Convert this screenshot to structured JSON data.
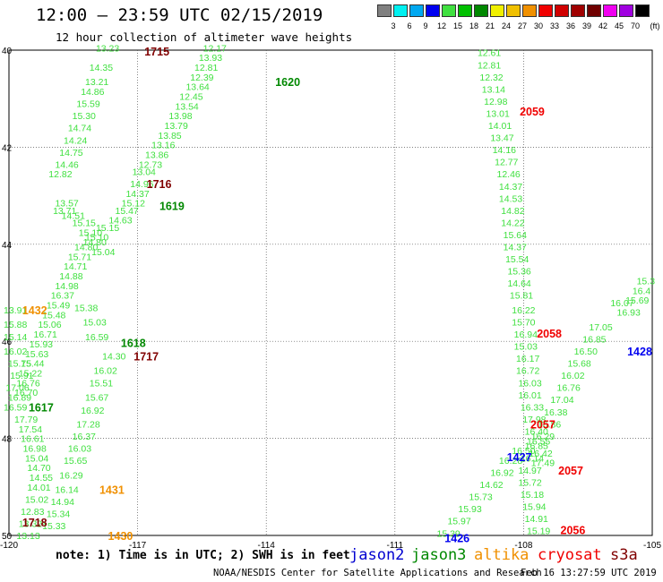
{
  "header": {
    "title": "12:00 – 23:59 UTC 02/15/2019",
    "subtitle": "12 hour collection of altimeter wave heights"
  },
  "colorbar": {
    "unit": "(ft)",
    "colors": [
      "#808080",
      "#00f0f0",
      "#00a8f0",
      "#0000f0",
      "#40e040",
      "#00c000",
      "#008800",
      "#f0f000",
      "#f0c000",
      "#f09000",
      "#f00000",
      "#d00000",
      "#a00000",
      "#700000",
      "#f000f0",
      "#a000e0",
      "#000000"
    ],
    "labels": [
      "3",
      "6",
      "9",
      "12",
      "15",
      "18",
      "21",
      "24",
      "27",
      "30",
      "33",
      "36",
      "39",
      "42",
      "45",
      "70"
    ]
  },
  "map": {
    "lon_ticks": [
      "-120",
      "-117",
      "-114",
      "-111",
      "-108",
      "-105"
    ],
    "lat_ticks": [
      "40",
      "42",
      "44",
      "46",
      "48",
      "50"
    ]
  },
  "passes": [
    {
      "label": "1715",
      "color": "#800000",
      "lon": -116.55,
      "lat": 40.02
    },
    {
      "label": "1620",
      "color": "#008800",
      "lon": -113.5,
      "lat": 40.65
    },
    {
      "label": "1716",
      "color": "#800000",
      "lon": -116.5,
      "lat": 42.75
    },
    {
      "label": "1619",
      "color": "#008800",
      "lon": -116.2,
      "lat": 43.2
    },
    {
      "label": "1432",
      "color": "#f09000",
      "lon": -119.4,
      "lat": 45.35
    },
    {
      "label": "1618",
      "color": "#008800",
      "lon": -117.1,
      "lat": 46.02
    },
    {
      "label": "1717",
      "color": "#800000",
      "lon": -116.8,
      "lat": 46.3
    },
    {
      "label": "1617",
      "color": "#008800",
      "lon": -119.25,
      "lat": 47.35
    },
    {
      "label": "1431",
      "color": "#f09000",
      "lon": -117.6,
      "lat": 49.05
    },
    {
      "label": "1718",
      "color": "#800000",
      "lon": -119.4,
      "lat": 49.72
    },
    {
      "label": "1430",
      "color": "#f09000",
      "lon": -117.4,
      "lat": 50.0
    },
    {
      "label": "2059",
      "color": "#f00000",
      "lon": -107.8,
      "lat": 41.25
    },
    {
      "label": "2058",
      "color": "#f00000",
      "lon": -107.4,
      "lat": 45.83
    },
    {
      "label": "1428",
      "color": "#0000f0",
      "lon": -105.2,
      "lat": 46.2
    },
    {
      "label": "2057",
      "color": "#f00000",
      "lon": -107.55,
      "lat": 47.7
    },
    {
      "label": "1427",
      "color": "#0000f0",
      "lon": -108.1,
      "lat": 48.38
    },
    {
      "label": "2057",
      "color": "#f00000",
      "lon": -106.9,
      "lat": 48.65
    },
    {
      "label": "1426",
      "color": "#0000f0",
      "lon": -109.55,
      "lat": 50.05
    },
    {
      "label": "2056",
      "color": "#f00000",
      "lon": -106.85,
      "lat": 49.88
    }
  ],
  "tracks": [
    {
      "color": "#40e040",
      "points": [
        {
          "lon": -115.2,
          "lat": 39.95,
          "v": "12.17"
        },
        {
          "lon": -115.3,
          "lat": 40.15,
          "v": "13.93"
        },
        {
          "lon": -115.4,
          "lat": 40.35,
          "v": "12.81"
        },
        {
          "lon": -115.5,
          "lat": 40.55,
          "v": "12.39"
        },
        {
          "lon": -115.6,
          "lat": 40.75,
          "v": "13.64"
        },
        {
          "lon": -115.75,
          "lat": 40.95,
          "v": "12.45"
        },
        {
          "lon": -115.85,
          "lat": 41.15,
          "v": "13.54"
        },
        {
          "lon": -116.0,
          "lat": 41.35,
          "v": "13.98"
        },
        {
          "lon": -116.1,
          "lat": 41.55,
          "v": "13.79"
        },
        {
          "lon": -116.25,
          "lat": 41.75,
          "v": "13.85"
        },
        {
          "lon": -116.4,
          "lat": 41.95,
          "v": "13.16"
        },
        {
          "lon": -116.55,
          "lat": 42.15,
          "v": "13.86"
        },
        {
          "lon": -116.7,
          "lat": 42.35,
          "v": "12.73"
        },
        {
          "lon": -116.85,
          "lat": 42.5,
          "v": "13.04"
        }
      ]
    },
    {
      "color": "#40e040",
      "points": [
        {
          "lon": -117.7,
          "lat": 39.95,
          "v": "13.23"
        },
        {
          "lon": -117.85,
          "lat": 40.35,
          "v": "14.35"
        },
        {
          "lon": -117.95,
          "lat": 40.65,
          "v": "13.21"
        },
        {
          "lon": -118.05,
          "lat": 40.85,
          "v": "14.86"
        },
        {
          "lon": -118.15,
          "lat": 41.1,
          "v": "15.59"
        },
        {
          "lon": -118.25,
          "lat": 41.35,
          "v": "15.30"
        },
        {
          "lon": -118.35,
          "lat": 41.6,
          "v": "14.74"
        },
        {
          "lon": -118.45,
          "lat": 41.85,
          "v": "14.24"
        },
        {
          "lon": -118.55,
          "lat": 42.1,
          "v": "14.75"
        },
        {
          "lon": -118.65,
          "lat": 42.35,
          "v": "14.46"
        },
        {
          "lon": -118.8,
          "lat": 42.55,
          "v": "12.82"
        },
        {
          "lon": -118.7,
          "lat": 43.3,
          "v": "13.71"
        },
        {
          "lon": -118.65,
          "lat": 43.15,
          "v": "13.57"
        },
        {
          "lon": -118.5,
          "lat": 43.4,
          "v": "14.51"
        },
        {
          "lon": -118.25,
          "lat": 43.55,
          "v": "15.15"
        },
        {
          "lon": -118.1,
          "lat": 43.75,
          "v": "15.10"
        },
        {
          "lon": -118.0,
          "lat": 43.95,
          "v": "14.80"
        },
        {
          "lon": -117.8,
          "lat": 44.15,
          "v": "15.04"
        }
      ]
    },
    {
      "color": "#40e040",
      "points": [
        {
          "lon": -116.9,
          "lat": 42.75,
          "v": "14.96"
        },
        {
          "lon": -117.0,
          "lat": 42.95,
          "v": "14.37"
        },
        {
          "lon": -117.1,
          "lat": 43.15,
          "v": "15.12"
        },
        {
          "lon": -117.25,
          "lat": 43.3,
          "v": "15.47"
        },
        {
          "lon": -117.4,
          "lat": 43.5,
          "v": "14.63"
        },
        {
          "lon": -117.7,
          "lat": 43.65,
          "v": "15.15"
        },
        {
          "lon": -117.95,
          "lat": 43.85,
          "v": "15.10"
        },
        {
          "lon": -118.2,
          "lat": 44.05,
          "v": "14.80"
        },
        {
          "lon": -118.35,
          "lat": 44.25,
          "v": "15.71"
        },
        {
          "lon": -118.45,
          "lat": 44.45,
          "v": "14.71"
        },
        {
          "lon": -118.55,
          "lat": 44.65,
          "v": "14.88"
        },
        {
          "lon": -118.65,
          "lat": 44.85,
          "v": "14.98"
        },
        {
          "lon": -118.75,
          "lat": 45.05,
          "v": "16.37"
        },
        {
          "lon": -118.85,
          "lat": 45.25,
          "v": "15.49"
        },
        {
          "lon": -118.95,
          "lat": 45.45,
          "v": "15.48"
        },
        {
          "lon": -119.05,
          "lat": 45.65,
          "v": "15.06"
        },
        {
          "lon": -119.15,
          "lat": 45.85,
          "v": "16.71"
        },
        {
          "lon": -119.25,
          "lat": 46.05,
          "v": "15.93"
        },
        {
          "lon": -119.35,
          "lat": 46.25,
          "v": "15.63"
        },
        {
          "lon": -119.45,
          "lat": 46.45,
          "v": "15.44"
        },
        {
          "lon": -119.5,
          "lat": 46.65,
          "v": "15.22"
        },
        {
          "lon": -119.55,
          "lat": 46.85,
          "v": "16.76"
        },
        {
          "lon": -119.6,
          "lat": 47.05,
          "v": "16.70"
        }
      ]
    },
    {
      "color": "#40e040",
      "points": [
        {
          "lon": -118.2,
          "lat": 45.3,
          "v": "15.38"
        },
        {
          "lon": -118.0,
          "lat": 45.6,
          "v": "15.03"
        },
        {
          "lon": -117.95,
          "lat": 45.9,
          "v": "16.59"
        },
        {
          "lon": -117.55,
          "lat": 46.3,
          "v": "14.30"
        },
        {
          "lon": -117.75,
          "lat": 46.6,
          "v": "16.02"
        },
        {
          "lon": -117.85,
          "lat": 46.85,
          "v": "15.51"
        },
        {
          "lon": -117.95,
          "lat": 47.15,
          "v": "15.67"
        },
        {
          "lon": -118.05,
          "lat": 47.42,
          "v": "16.92"
        },
        {
          "lon": -118.15,
          "lat": 47.7,
          "v": "17.28"
        },
        {
          "lon": -118.25,
          "lat": 47.95,
          "v": "16.37"
        },
        {
          "lon": -118.35,
          "lat": 48.2,
          "v": "16.03"
        },
        {
          "lon": -118.45,
          "lat": 48.45,
          "v": "15.65"
        },
        {
          "lon": -118.55,
          "lat": 48.75,
          "v": "16.29"
        },
        {
          "lon": -118.65,
          "lat": 49.05,
          "v": "16.14"
        },
        {
          "lon": -118.75,
          "lat": 49.3,
          "v": "14.94"
        },
        {
          "lon": -118.85,
          "lat": 49.55,
          "v": "15.34"
        },
        {
          "lon": -118.95,
          "lat": 49.8,
          "v": "15.33"
        },
        {
          "lon": -119.05,
          "lat": 50.05,
          "v": "15.21"
        },
        {
          "lon": -119.15,
          "lat": 50.3,
          "v": "15.52"
        }
      ]
    },
    {
      "color": "#40e040",
      "points": [
        {
          "lon": -119.85,
          "lat": 45.35,
          "v": "13.91"
        },
        {
          "lon": -119.85,
          "lat": 45.65,
          "v": "15.88"
        },
        {
          "lon": -119.85,
          "lat": 45.9,
          "v": "15.14"
        },
        {
          "lon": -119.85,
          "lat": 46.2,
          "v": "16.02"
        },
        {
          "lon": -119.75,
          "lat": 46.45,
          "v": "15.75"
        },
        {
          "lon": -119.7,
          "lat": 46.7,
          "v": "15.91"
        },
        {
          "lon": -119.8,
          "lat": 46.95,
          "v": "17.06"
        },
        {
          "lon": -119.75,
          "lat": 47.15,
          "v": "16.89"
        },
        {
          "lon": -119.85,
          "lat": 47.35,
          "v": "16.59"
        },
        {
          "lon": -119.6,
          "lat": 47.6,
          "v": "17.79"
        },
        {
          "lon": -119.5,
          "lat": 47.8,
          "v": "17.54"
        },
        {
          "lon": -119.45,
          "lat": 48.0,
          "v": "16.61"
        },
        {
          "lon": -119.4,
          "lat": 48.2,
          "v": "16.98"
        },
        {
          "lon": -119.35,
          "lat": 48.4,
          "v": "15.04"
        },
        {
          "lon": -119.3,
          "lat": 48.6,
          "v": "14.70"
        },
        {
          "lon": -119.25,
          "lat": 48.8,
          "v": "14.55"
        },
        {
          "lon": -119.3,
          "lat": 49.0,
          "v": "14.01"
        },
        {
          "lon": -119.35,
          "lat": 49.25,
          "v": "15.02"
        },
        {
          "lon": -119.45,
          "lat": 49.5,
          "v": "12.83"
        },
        {
          "lon": -119.5,
          "lat": 49.75,
          "v": "13.32"
        },
        {
          "lon": -119.55,
          "lat": 50.0,
          "v": "13.13"
        },
        {
          "lon": -119.95,
          "lat": 50.25,
          "v": "12.76"
        }
      ]
    },
    {
      "color": "#40e040",
      "points": [
        {
          "lon": -108.8,
          "lat": 40.05,
          "v": "12.61"
        },
        {
          "lon": -108.8,
          "lat": 40.3,
          "v": "12.81"
        },
        {
          "lon": -108.75,
          "lat": 40.55,
          "v": "12.32"
        },
        {
          "lon": -108.7,
          "lat": 40.8,
          "v": "13.14"
        },
        {
          "lon": -108.65,
          "lat": 41.05,
          "v": "12.98"
        },
        {
          "lon": -108.6,
          "lat": 41.3,
          "v": "13.01"
        },
        {
          "lon": -108.55,
          "lat": 41.55,
          "v": "14.01"
        },
        {
          "lon": -108.5,
          "lat": 41.8,
          "v": "13.47"
        },
        {
          "lon": -108.45,
          "lat": 42.05,
          "v": "14.16"
        },
        {
          "lon": -108.4,
          "lat": 42.3,
          "v": "12.77"
        },
        {
          "lon": -108.35,
          "lat": 42.55,
          "v": "12.46"
        },
        {
          "lon": -108.3,
          "lat": 42.8,
          "v": "14.37"
        },
        {
          "lon": -108.3,
          "lat": 43.05,
          "v": "14.53"
        },
        {
          "lon": -108.25,
          "lat": 43.3,
          "v": "14.82"
        },
        {
          "lon": -108.25,
          "lat": 43.55,
          "v": "14.22"
        },
        {
          "lon": -108.2,
          "lat": 43.8,
          "v": "15.64"
        },
        {
          "lon": -108.2,
          "lat": 44.05,
          "v": "14.37"
        },
        {
          "lon": -108.15,
          "lat": 44.3,
          "v": "15.54"
        },
        {
          "lon": -108.1,
          "lat": 44.55,
          "v": "15.36"
        },
        {
          "lon": -108.1,
          "lat": 44.8,
          "v": "14.64"
        },
        {
          "lon": -108.05,
          "lat": 45.05,
          "v": "15.81"
        },
        {
          "lon": -108.0,
          "lat": 45.35,
          "v": "16.22"
        },
        {
          "lon": -108.0,
          "lat": 45.6,
          "v": "15.70"
        },
        {
          "lon": -107.95,
          "lat": 45.85,
          "v": "16.94"
        },
        {
          "lon": -107.95,
          "lat": 46.1,
          "v": "15.03"
        },
        {
          "lon": -107.9,
          "lat": 46.35,
          "v": "16.17"
        },
        {
          "lon": -107.9,
          "lat": 46.6,
          "v": "16.72"
        },
        {
          "lon": -107.85,
          "lat": 46.85,
          "v": "16.03"
        },
        {
          "lon": -107.85,
          "lat": 47.1,
          "v": "16.01"
        },
        {
          "lon": -107.8,
          "lat": 47.35,
          "v": "16.33"
        },
        {
          "lon": -107.75,
          "lat": 47.6,
          "v": "17.98"
        },
        {
          "lon": -107.7,
          "lat": 47.85,
          "v": "16.40"
        },
        {
          "lon": -107.65,
          "lat": 48.05,
          "v": "16.55"
        },
        {
          "lon": -107.6,
          "lat": 48.3,
          "v": "16.42"
        },
        {
          "lon": -107.55,
          "lat": 48.5,
          "v": "17.49"
        }
      ]
    },
    {
      "color": "#40e040",
      "points": [
        {
          "lon": -106.2,
          "lat": 45.7,
          "v": "17.05"
        },
        {
          "lon": -106.35,
          "lat": 45.95,
          "v": "16.85"
        },
        {
          "lon": -106.55,
          "lat": 46.2,
          "v": "16.50"
        },
        {
          "lon": -106.7,
          "lat": 46.45,
          "v": "15.68"
        },
        {
          "lon": -106.85,
          "lat": 46.7,
          "v": "16.02"
        },
        {
          "lon": -106.95,
          "lat": 46.95,
          "v": "16.76"
        },
        {
          "lon": -107.1,
          "lat": 47.2,
          "v": "17.04"
        },
        {
          "lon": -107.25,
          "lat": 47.45,
          "v": "16.38"
        },
        {
          "lon": -107.4,
          "lat": 47.7,
          "v": "16.86"
        },
        {
          "lon": -107.55,
          "lat": 47.95,
          "v": "16.29"
        },
        {
          "lon": -107.7,
          "lat": 48.15,
          "v": "16.85"
        },
        {
          "lon": -107.8,
          "lat": 48.4,
          "v": "16.14"
        },
        {
          "lon": -107.85,
          "lat": 48.65,
          "v": "14.97"
        },
        {
          "lon": -107.85,
          "lat": 48.9,
          "v": "15.72"
        },
        {
          "lon": -107.8,
          "lat": 49.15,
          "v": "15.18"
        },
        {
          "lon": -107.75,
          "lat": 49.4,
          "v": "15.94"
        },
        {
          "lon": -107.7,
          "lat": 49.65,
          "v": "14.91"
        },
        {
          "lon": -107.65,
          "lat": 49.9,
          "v": "15.19"
        },
        {
          "lon": -107.6,
          "lat": 50.15,
          "v": "17.05"
        },
        {
          "lon": -107.55,
          "lat": 50.4,
          "v": "16.04"
        },
        {
          "lon": -107.5,
          "lat": 50.65,
          "v": "15.75"
        },
        {
          "lon": -107.45,
          "lat": 50.9,
          "v": "15.39"
        }
      ]
    },
    {
      "color": "#40e040",
      "points": [
        {
          "lon": -108.0,
          "lat": 48.25,
          "v": "16.50"
        },
        {
          "lon": -108.3,
          "lat": 48.45,
          "v": "16.28"
        },
        {
          "lon": -108.5,
          "lat": 48.7,
          "v": "16.92"
        },
        {
          "lon": -108.75,
          "lat": 48.95,
          "v": "14.62"
        },
        {
          "lon": -109.0,
          "lat": 49.2,
          "v": "15.73"
        },
        {
          "lon": -109.25,
          "lat": 49.45,
          "v": "15.93"
        },
        {
          "lon": -109.5,
          "lat": 49.7,
          "v": "15.97"
        },
        {
          "lon": -109.75,
          "lat": 49.95,
          "v": "15.39"
        },
        {
          "lon": -110.0,
          "lat": 50.2,
          "v": "15.87"
        },
        {
          "lon": -110.25,
          "lat": 50.45,
          "v": "16.40"
        },
        {
          "lon": -110.5,
          "lat": 50.7,
          "v": "15.56"
        },
        {
          "lon": -110.75,
          "lat": 50.95,
          "v": "16.04"
        },
        {
          "lon": -111.0,
          "lat": 51.2,
          "v": "14.77"
        }
      ]
    },
    {
      "color": "#40e040",
      "points": [
        {
          "lon": -105.15,
          "lat": 44.75,
          "v": "15.3"
        },
        {
          "lon": -105.25,
          "lat": 44.95,
          "v": "16.4"
        },
        {
          "lon": -105.35,
          "lat": 45.15,
          "v": "15.69"
        },
        {
          "lon": -105.55,
          "lat": 45.4,
          "v": "16.93"
        },
        {
          "lon": -105.7,
          "lat": 45.2,
          "v": "16.07"
        }
      ]
    }
  ],
  "legend": {
    "note": "note: 1) Time is in UTC; 2) SWH is in feet",
    "satellites": [
      {
        "name": "jason2",
        "color": "#0000d0"
      },
      {
        "name": "jason3",
        "color": "#008800"
      },
      {
        "name": "altika",
        "color": "#f09000"
      },
      {
        "name": "cryosat",
        "color": "#f00000"
      },
      {
        "name": "s3a",
        "color": "#800000"
      }
    ]
  },
  "credit": {
    "org": "NOAA/NESDIS Center for Satellite Applications and Research",
    "time": "Feb 16 13:27:59 UTC 2019"
  }
}
